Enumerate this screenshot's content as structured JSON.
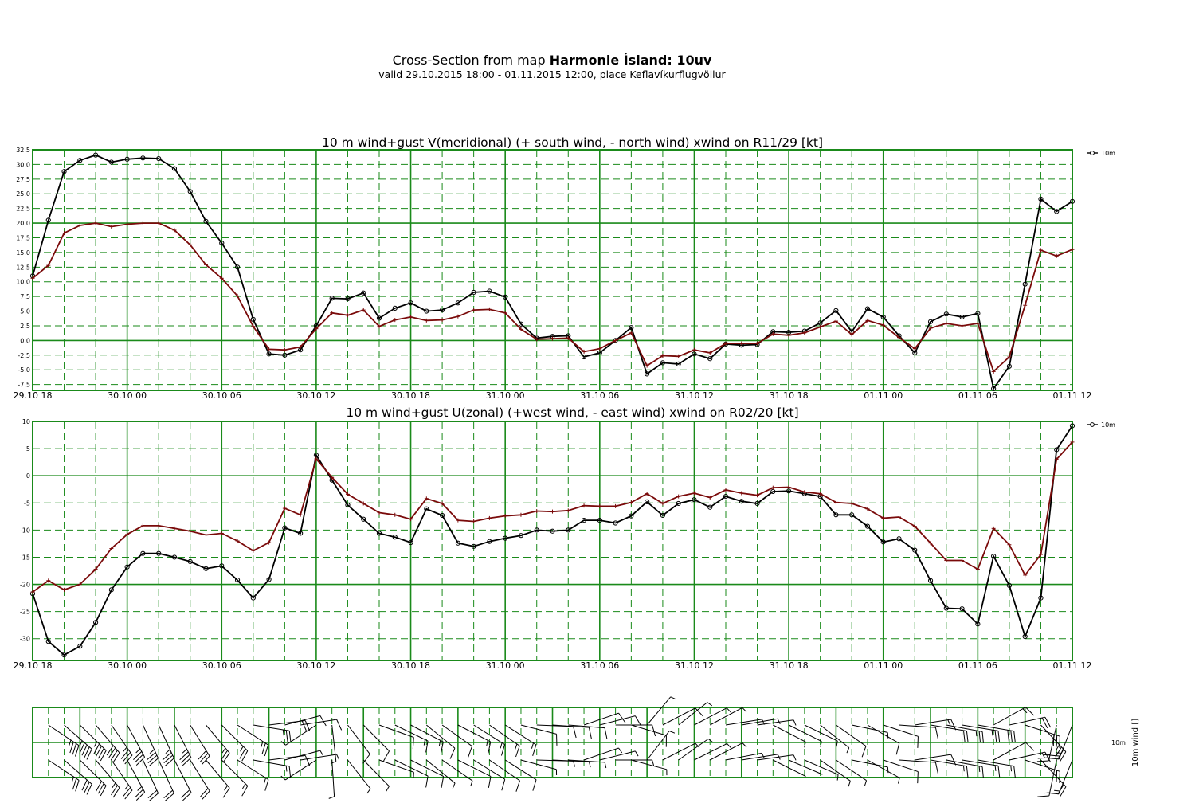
{
  "header": {
    "title_prefix": "Cross-Section from map ",
    "title_bold": "Harmonie Ísland: 10uv",
    "subtitle": "valid 29.10.2015 18:00 - 01.11.2015 12:00, place Keflavíkurflugvöllur"
  },
  "colors": {
    "grid": "#1a8a1a",
    "wind_line": "#000000",
    "gust_line": "#7a0a0a"
  },
  "x_tick_labels": [
    "29.10 18",
    "30.10 00",
    "30.10 06",
    "30.10 12",
    "30.10 18",
    "31.10 00",
    "31.10 06",
    "31.10 12",
    "31.10 18",
    "01.11 00",
    "01.11 06",
    "01.11 12"
  ],
  "chart_data": [
    {
      "type": "line",
      "title": "10 m wind+gust V(meridional) (+ south wind, - north wind) xwind on R11/29 [kt]",
      "x_unit": "hours since 29.10 18",
      "ylim": [
        -8.5,
        32.5
      ],
      "y_ticks": [
        "32.5",
        "30.0",
        "27.5",
        "25.0",
        "22.5",
        "20.0",
        "17.5",
        "15.0",
        "12.5",
        "10.0",
        "7.5",
        "5.0",
        "2.5",
        "0.0",
        "-2.5",
        "-5.0",
        "-7.5"
      ],
      "legend": "10m",
      "legend_position": "right",
      "grid": true,
      "series": [
        {
          "name": "10m",
          "marker": "circle",
          "values": [
            11.0,
            20.5,
            28.8,
            30.7,
            31.6,
            30.4,
            30.9,
            31.1,
            31.0,
            29.3,
            25.4,
            20.3,
            16.6,
            12.5,
            3.6,
            -2.3,
            -2.5,
            -1.6,
            2.5,
            7.2,
            7.1,
            8.1,
            3.8,
            5.5,
            6.4,
            5.0,
            5.2,
            6.4,
            8.2,
            8.4,
            7.4,
            2.8,
            0.4,
            0.7,
            0.8,
            -2.8,
            -2.1,
            0.0,
            2.2,
            -5.7,
            -3.8,
            -4.0,
            -2.3,
            -3.1,
            -0.6,
            -0.8,
            -0.7,
            1.5,
            1.4,
            1.6,
            3.0,
            5.1,
            1.5,
            5.4,
            4.0,
            0.8,
            -2.1,
            3.2,
            4.5,
            4.0,
            4.6,
            -8.2,
            -4.4,
            9.6,
            24.1,
            22.0,
            23.7
          ]
        },
        {
          "name": "",
          "marker": "plus",
          "values": [
            10.6,
            12.8,
            18.3,
            19.6,
            20.0,
            19.4,
            19.8,
            20.0,
            20.0,
            18.8,
            16.3,
            12.9,
            10.6,
            7.6,
            2.4,
            -1.5,
            -1.6,
            -1.1,
            2.0,
            4.7,
            4.3,
            5.2,
            2.4,
            3.5,
            4.0,
            3.4,
            3.5,
            4.1,
            5.2,
            5.3,
            4.7,
            1.9,
            0.2,
            0.3,
            0.4,
            -1.9,
            -1.4,
            0.0,
            1.3,
            -4.3,
            -2.6,
            -2.7,
            -1.6,
            -2.1,
            -0.5,
            -0.5,
            -0.5,
            1.1,
            0.9,
            1.3,
            2.3,
            3.3,
            1.0,
            3.4,
            2.6,
            0.5,
            -1.4,
            2.1,
            2.9,
            2.5,
            2.9,
            -5.3,
            -2.8,
            6.0,
            15.4,
            14.4,
            15.5
          ]
        }
      ]
    },
    {
      "type": "line",
      "title": "10 m wind+gust U(zonal) (+west wind, - east wind) xwind on R02/20 [kt]",
      "x_unit": "hours since 29.10 18",
      "ylim": [
        -34,
        10
      ],
      "y_ticks": [
        "10",
        "5",
        "0",
        "-5",
        "-10",
        "-15",
        "-20",
        "-25",
        "-30"
      ],
      "legend": "10m",
      "legend_position": "right",
      "grid": true,
      "series": [
        {
          "name": "10m",
          "marker": "circle",
          "values": [
            -21.7,
            -30.5,
            -33.0,
            -31.4,
            -27.0,
            -21.0,
            -16.8,
            -14.3,
            -14.3,
            -15.0,
            -15.8,
            -17.1,
            -16.6,
            -19.2,
            -22.5,
            -19.1,
            -9.6,
            -10.6,
            3.8,
            -0.8,
            -5.4,
            -8.0,
            -10.6,
            -11.3,
            -12.3,
            -6.1,
            -7.3,
            -12.4,
            -13.0,
            -12.1,
            -11.5,
            -11.0,
            -10.0,
            -10.2,
            -10.0,
            -8.2,
            -8.2,
            -8.7,
            -7.4,
            -4.8,
            -7.3,
            -5.1,
            -4.4,
            -5.8,
            -3.8,
            -4.7,
            -5.1,
            -2.9,
            -2.8,
            -3.3,
            -3.8,
            -7.2,
            -7.2,
            -9.3,
            -12.2,
            -11.6,
            -13.7,
            -19.3,
            -24.4,
            -24.5,
            -27.3,
            -14.8,
            -20.2,
            -29.6,
            -22.5,
            4.8,
            9.2
          ]
        },
        {
          "name": "",
          "marker": "plus",
          "values": [
            -21.4,
            -19.3,
            -21.0,
            -20.0,
            -17.2,
            -13.4,
            -10.8,
            -9.2,
            -9.2,
            -9.7,
            -10.2,
            -10.9,
            -10.6,
            -12.0,
            -13.8,
            -12.3,
            -6.0,
            -7.2,
            3.1,
            -0.3,
            -3.4,
            -5.1,
            -6.8,
            -7.2,
            -8.0,
            -4.2,
            -5.1,
            -8.2,
            -8.4,
            -7.8,
            -7.4,
            -7.2,
            -6.5,
            -6.6,
            -6.4,
            -5.5,
            -5.6,
            -5.6,
            -4.9,
            -3.3,
            -5.1,
            -3.8,
            -3.2,
            -4.0,
            -2.6,
            -3.2,
            -3.6,
            -2.2,
            -2.1,
            -3.0,
            -3.3,
            -4.9,
            -5.1,
            -6.1,
            -7.8,
            -7.6,
            -9.3,
            -12.4,
            -15.6,
            -15.6,
            -17.2,
            -9.7,
            -12.7,
            -18.3,
            -14.5,
            3.0,
            6.2
          ]
        }
      ]
    }
  ],
  "barb_panel": {
    "row_label": "10m",
    "axis_label": "10m wind []"
  }
}
